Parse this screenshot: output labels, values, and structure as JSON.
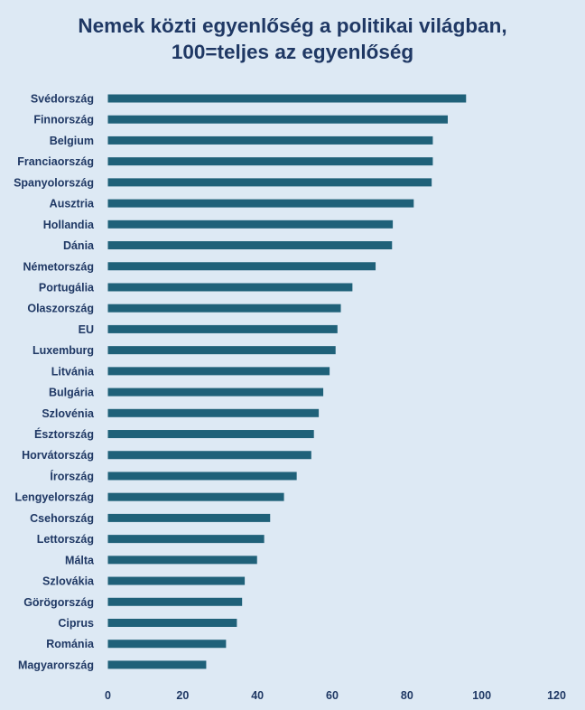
{
  "chart_data": {
    "type": "bar",
    "orientation": "horizontal",
    "title_lines": [
      "Nemek közti egyenlőség a politikai világban,",
      "100=teljes az egyenlőség"
    ],
    "categories": [
      "Svédország",
      "Finnország",
      "Belgium",
      "Franciaország",
      "Spanyolország",
      "Ausztria",
      "Hollandia",
      "Dánia",
      "Németország",
      "Portugália",
      "Olaszország",
      "EU",
      "Luxemburg",
      "Litvánia",
      "Bulgária",
      "Szlovénia",
      "Észtország",
      "Horvátország",
      "Írország",
      "Lengyelország",
      "Csehország",
      "Lettország",
      "Málta",
      "Szlovákia",
      "Görögország",
      "Ciprus",
      "Románia",
      "Magyarország"
    ],
    "values": [
      95.8,
      90.9,
      86.9,
      86.9,
      86.6,
      81.8,
      76.2,
      76.0,
      71.6,
      65.4,
      62.3,
      61.4,
      60.9,
      59.3,
      57.6,
      56.4,
      55.1,
      54.4,
      50.5,
      47.1,
      43.4,
      41.8,
      39.9,
      36.6,
      35.9,
      34.5,
      31.6,
      26.3
    ],
    "xlim": [
      0,
      120
    ],
    "xticks": [
      0,
      20,
      40,
      60,
      80,
      100,
      120
    ],
    "xlabel": "",
    "ylabel": "",
    "grid": false,
    "bar_color": "#1f6179",
    "background_color": "#dde9f4",
    "text_color": "#1f3864"
  }
}
